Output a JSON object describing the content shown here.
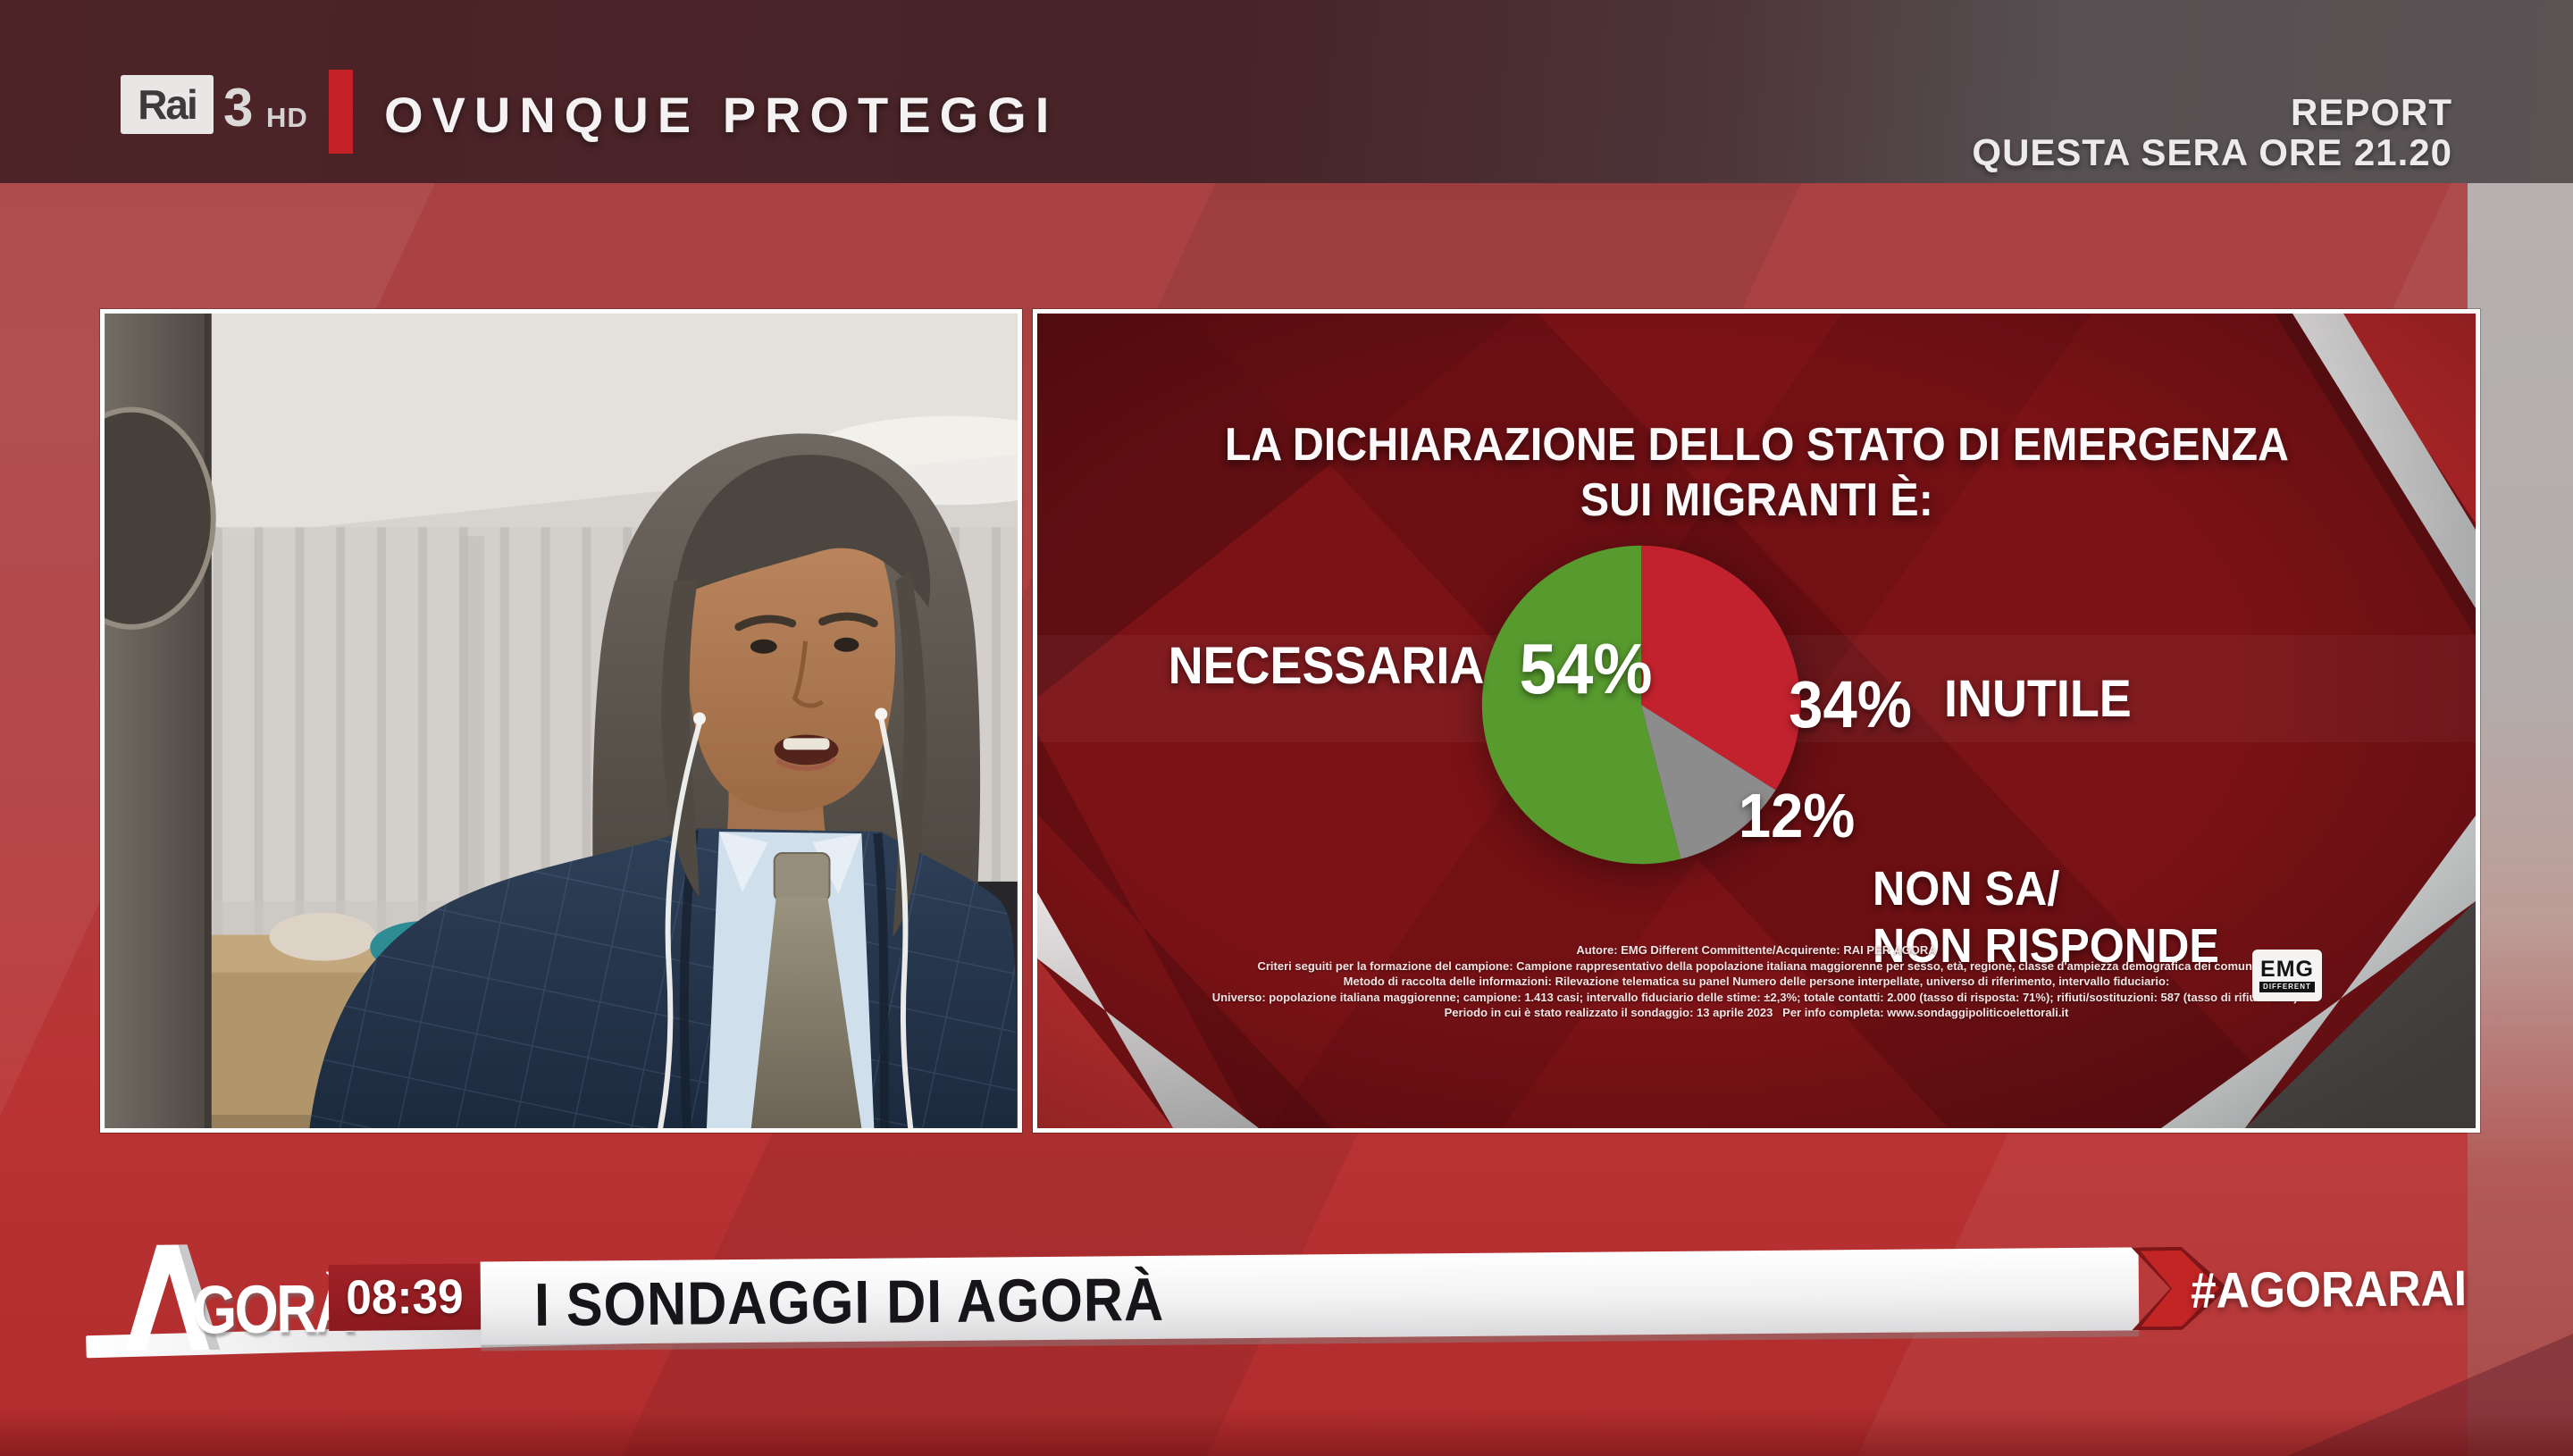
{
  "header": {
    "channel_logo": {
      "box_text": "Rai",
      "number": "3",
      "quality": "HD"
    },
    "slogan": "OVUNQUE PROTEGGI",
    "promo_title": "REPORT",
    "promo_subtitle": "QUESTA SERA ORE 21.20"
  },
  "chart_data": {
    "type": "pie",
    "title": "LA DICHIARAZIONE DELLO STATO DI EMERGENZA SUI MIGRANTI È:",
    "title_lines": [
      "LA DICHIARAZIONE DELLO STATO DI EMERGENZA",
      "SUI MIGRANTI È:"
    ],
    "start_angle_deg": 0,
    "direction": "clockwise",
    "legend_position": "around",
    "slices": [
      {
        "label": "INUTILE",
        "value": 34,
        "display": "34%",
        "color": "#c1222d"
      },
      {
        "label": "NON SA/NON RISPONDE",
        "label_lines": [
          "NON SA/",
          "NON RISPONDE"
        ],
        "value": 12,
        "display": "12%",
        "color": "#8c8c8c"
      },
      {
        "label": "NECESSARIA",
        "value": 54,
        "display": "54%",
        "color": "#579a2e"
      }
    ]
  },
  "chart_panel": {
    "fine_print": [
      "Autore: EMG Different Committente/Acquirente: RAI PER AGORÀ",
      "Criteri seguiti per la formazione del campione: Campione rappresentativo della popolazione italiana maggiorenne per sesso, età, regione, classe d'ampiezza demografica dei comuni",
      "Metodo di raccolta delle informazioni: Rilevazione telematica su panel Numero delle persone interpellate, universo di riferimento, intervallo fiduciario:",
      "Universo: popolazione italiana maggiorenne; campione: 1.413 casi; intervallo fiduciario delle stime: ±2,3%; totale contatti: 2.000 (tasso di risposta: 71%); rifiuti/sostituzioni: 587 (tasso di rifiuti: 29%).",
      "Periodo in cui è stato realizzato il sondaggio: 13 aprile 2023   Per info completa: www.sondaggipoliticoelettorali.it"
    ],
    "source_logo": {
      "name": "EMG",
      "tagline": "DIFFERENT"
    }
  },
  "ticker": {
    "show_name": "AGORÀ",
    "logo_rest": "GORÀ",
    "time": "08:39",
    "headline": "I SONDAGGI DI AGORÀ",
    "hashtag": "#AGORARAI"
  },
  "colors": {
    "accent_red": "#c32126",
    "panel_maroon": "#7b1216",
    "pie_green": "#579a2e",
    "pie_red": "#c1222d",
    "pie_gray": "#8c8c8c"
  }
}
